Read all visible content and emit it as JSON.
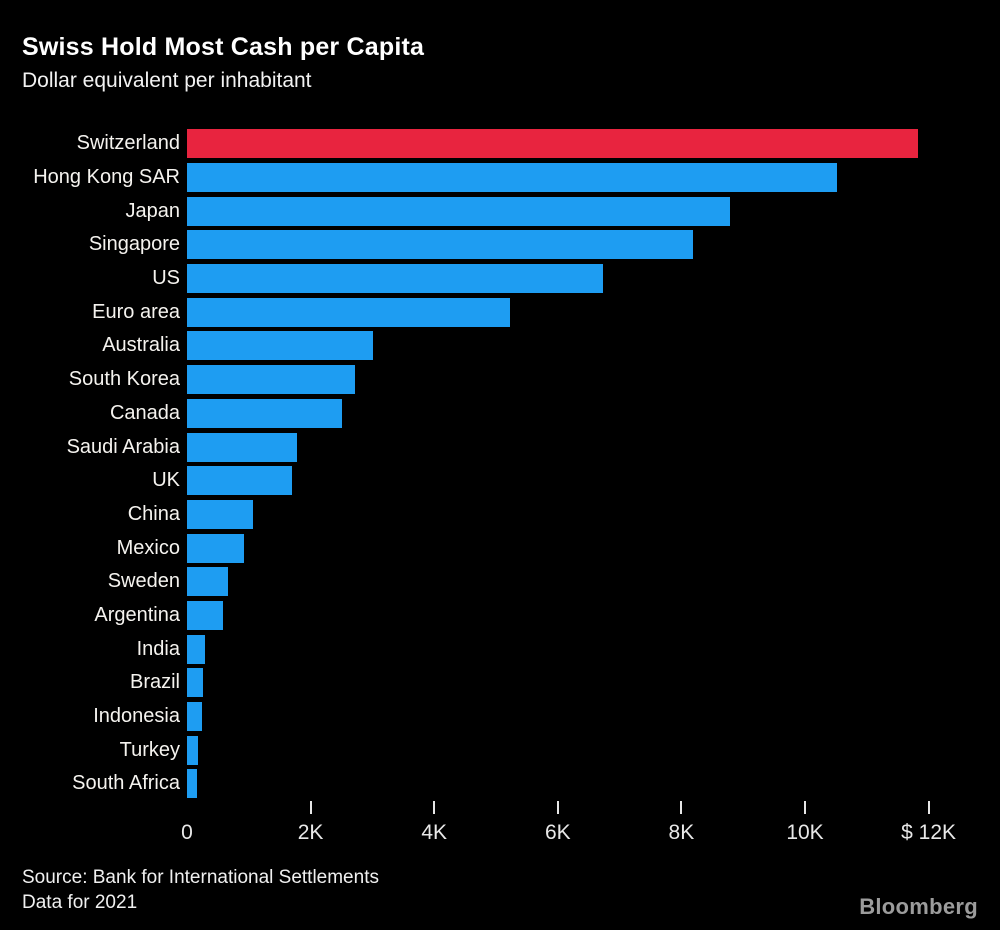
{
  "header": {
    "title": "Swiss Hold Most Cash per Capita",
    "subtitle": "Dollar equivalent per inhabitant"
  },
  "footer": {
    "source_line1": "Source: Bank for International Settlements",
    "source_line2": "Data for 2021",
    "logo_text": "Bloomberg"
  },
  "colors": {
    "background": "#000000",
    "bar": "#1e9df2",
    "highlight": "#e8243f",
    "title_text": "#ffffff",
    "label_text": "#f5f3ef",
    "axis_text": "#e8e8e8",
    "logo_text": "#9c9c9c"
  },
  "chart_data": {
    "type": "bar",
    "orientation": "horizontal",
    "title": "Swiss Hold Most Cash per Capita",
    "subtitle": "Dollar equivalent per inhabitant",
    "unit": "USD per inhabitant",
    "xlim": [
      0,
      12000
    ],
    "grid": false,
    "legend": false,
    "highlight_category": "Switzerland",
    "categories": [
      "Switzerland",
      "Hong Kong SAR",
      "Japan",
      "Singapore",
      "US",
      "Euro area",
      "Australia",
      "South Korea",
      "Canada",
      "Saudi Arabia",
      "UK",
      "China",
      "Mexico",
      "Sweden",
      "Argentina",
      "India",
      "Brazil",
      "Indonesia",
      "Turkey",
      "South Africa"
    ],
    "values": [
      11830,
      10520,
      8790,
      8190,
      6730,
      5230,
      3010,
      2720,
      2510,
      1780,
      1700,
      1070,
      920,
      660,
      575,
      290,
      260,
      235,
      185,
      160
    ],
    "x_ticks": [
      {
        "value": 0,
        "label": "0"
      },
      {
        "value": 2000,
        "label": "2K"
      },
      {
        "value": 4000,
        "label": "4K"
      },
      {
        "value": 6000,
        "label": "6K"
      },
      {
        "value": 8000,
        "label": "8K"
      },
      {
        "value": 10000,
        "label": "10K"
      },
      {
        "value": 12000,
        "label": "$ 12K"
      }
    ]
  }
}
